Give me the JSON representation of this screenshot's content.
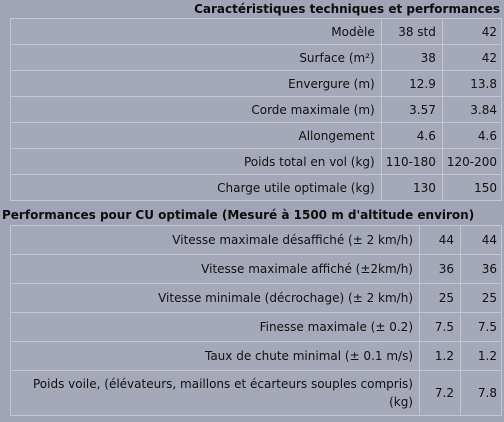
{
  "section1": {
    "title": "Caractéristiques techniques et performances",
    "rows": [
      {
        "label": "Modèle",
        "v1": "38 std",
        "v2": "42"
      },
      {
        "label": "Surface (m²)",
        "v1": "38",
        "v2": "42"
      },
      {
        "label": "Envergure (m)",
        "v1": "12.9",
        "v2": "13.8"
      },
      {
        "label": "Corde maximale (m)",
        "v1": "3.57",
        "v2": "3.84"
      },
      {
        "label": "Allongement",
        "v1": "4.6",
        "v2": "4.6"
      },
      {
        "label": "Poids total en vol (kg)",
        "v1": "110-180",
        "v2": "120-200"
      },
      {
        "label": "Charge utile optimale (kg)",
        "v1": "130",
        "v2": "150"
      }
    ]
  },
  "section2": {
    "title": "Performances pour CU optimale (Mesuré à 1500 m d'altitude environ)",
    "rows": [
      {
        "label": "Vitesse maximale désaffiché (± 2 km/h)",
        "v1": "44",
        "v2": "44"
      },
      {
        "label": "Vitesse maximale affiché (±2km/h)",
        "v1": "36",
        "v2": "36"
      },
      {
        "label": "Vitesse minimale (décrochage) (± 2 km/h)",
        "v1": "25",
        "v2": "25"
      },
      {
        "label": "Finesse maximale (± 0.2)",
        "v1": "7.5",
        "v2": "7.5"
      },
      {
        "label": "Taux de chute minimal (± 0.1 m/s)",
        "v1": "1.2",
        "v2": "1.2"
      },
      {
        "label": "Poids voile, (élévateurs, maillons et écarteurs souples compris) (kg)",
        "v1": "7.2",
        "v2": "7.8"
      }
    ]
  }
}
